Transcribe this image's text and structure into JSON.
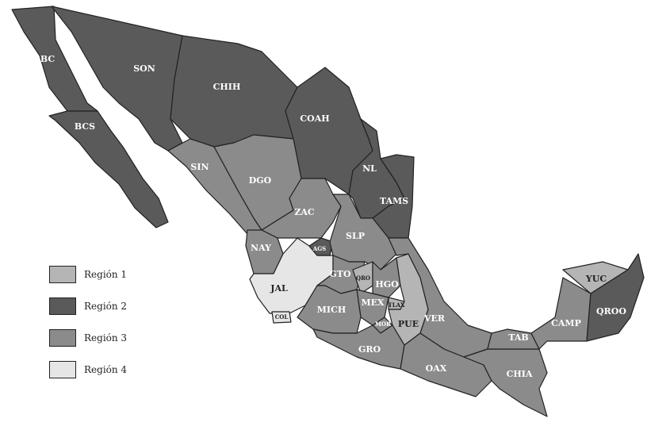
{
  "map": {
    "regions": [
      {
        "id": "1",
        "label": "Región 1",
        "color": "#b5b5b5"
      },
      {
        "id": "2",
        "label": "Región 2",
        "color": "#5a5a5a"
      },
      {
        "id": "3",
        "label": "Región 3",
        "color": "#8b8b8b"
      },
      {
        "id": "4",
        "label": "Región 4",
        "color": "#e6e6e6"
      }
    ],
    "states": [
      {
        "abbr": "BC",
        "region": "2"
      },
      {
        "abbr": "BCS",
        "region": "2"
      },
      {
        "abbr": "SON",
        "region": "2"
      },
      {
        "abbr": "CHIH",
        "region": "2"
      },
      {
        "abbr": "COAH",
        "region": "2"
      },
      {
        "abbr": "NL",
        "region": "2"
      },
      {
        "abbr": "TAMS",
        "region": "2"
      },
      {
        "abbr": "SIN",
        "region": "3"
      },
      {
        "abbr": "DGO",
        "region": "3"
      },
      {
        "abbr": "ZAC",
        "region": "3"
      },
      {
        "abbr": "NAY",
        "region": "3"
      },
      {
        "abbr": "JAL",
        "region": "4"
      },
      {
        "abbr": "AGS",
        "region": "2"
      },
      {
        "abbr": "COL",
        "region": "4"
      },
      {
        "abbr": "SLP",
        "region": "3"
      },
      {
        "abbr": "GTO",
        "region": "3"
      },
      {
        "abbr": "QRO",
        "region": "1"
      },
      {
        "abbr": "HGO",
        "region": "3"
      },
      {
        "abbr": "MEX",
        "region": "3"
      },
      {
        "abbr": "TLAX",
        "region": "1"
      },
      {
        "abbr": "MOR",
        "region": "3"
      },
      {
        "abbr": "PUE",
        "region": "1"
      },
      {
        "abbr": "VER",
        "region": "3"
      },
      {
        "abbr": "MICH",
        "region": "3"
      },
      {
        "abbr": "GRO",
        "region": "3"
      },
      {
        "abbr": "OAX",
        "region": "3"
      },
      {
        "abbr": "CHIA",
        "region": "3"
      },
      {
        "abbr": "TAB",
        "region": "3"
      },
      {
        "abbr": "CAMP",
        "region": "3"
      },
      {
        "abbr": "YUC",
        "region": "1"
      },
      {
        "abbr": "QROO",
        "region": "2"
      }
    ]
  }
}
